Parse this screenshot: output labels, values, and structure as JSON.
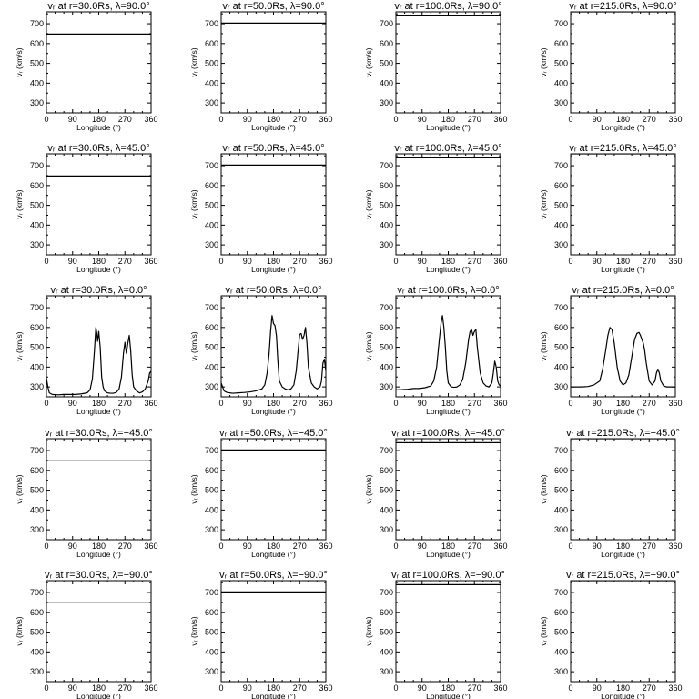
{
  "figure": {
    "background": "#ffffff",
    "ink": "#000000"
  },
  "chart_data": [
    {
      "type": "line",
      "title": "vᵣ at r=30.0Rs, λ=90.0°",
      "xlabel": "Longitude (°)",
      "ylabel": "vᵣ (km/s)",
      "xlim": [
        0,
        360
      ],
      "ylim": [
        250,
        760
      ],
      "xticks": [
        0,
        90,
        180,
        270,
        360
      ],
      "yticks": [
        300,
        400,
        500,
        600,
        700
      ],
      "x": [
        0,
        360
      ],
      "y": [
        648,
        648
      ]
    },
    {
      "type": "line",
      "title": "vᵣ at r=50.0Rs, λ=90.0°",
      "xlabel": "Longitude (°)",
      "ylabel": "vᵣ (km/s)",
      "xlim": [
        0,
        360
      ],
      "ylim": [
        250,
        760
      ],
      "xticks": [
        0,
        90,
        180,
        270,
        360
      ],
      "yticks": [
        300,
        400,
        500,
        600,
        700
      ],
      "x": [
        0,
        360
      ],
      "y": [
        703,
        703
      ]
    },
    {
      "type": "line",
      "title": "vᵣ at r=100.0Rs, λ=90.0°",
      "xlabel": "Longitude (°)",
      "ylabel": "vᵣ (km/s)",
      "xlim": [
        0,
        360
      ],
      "ylim": [
        250,
        760
      ],
      "xticks": [
        0,
        90,
        180,
        270,
        360
      ],
      "yticks": [
        300,
        400,
        500,
        600,
        700
      ],
      "x": [
        0,
        360
      ],
      "y": [
        740,
        740
      ]
    },
    {
      "type": "line",
      "title": "vᵣ at r=215.0Rs, λ=90.0°",
      "xlabel": "Longitude (°)",
      "ylabel": "vᵣ (km/s)",
      "xlim": [
        0,
        360
      ],
      "ylim": [
        250,
        760
      ],
      "xticks": [
        0,
        90,
        180,
        270,
        360
      ],
      "yticks": [
        300,
        400,
        500,
        600,
        700
      ],
      "x": [
        0,
        360
      ],
      "y": [
        760,
        760
      ]
    },
    {
      "type": "line",
      "title": "vᵣ at r=30.0Rs, λ=45.0°",
      "xlabel": "Longitude (°)",
      "ylabel": "vᵣ (km/s)",
      "xlim": [
        0,
        360
      ],
      "ylim": [
        250,
        760
      ],
      "xticks": [
        0,
        90,
        180,
        270,
        360
      ],
      "yticks": [
        300,
        400,
        500,
        600,
        700
      ],
      "x": [
        0,
        360
      ],
      "y": [
        648,
        648
      ]
    },
    {
      "type": "line",
      "title": "vᵣ at r=50.0Rs, λ=45.0°",
      "xlabel": "Longitude (°)",
      "ylabel": "vᵣ (km/s)",
      "xlim": [
        0,
        360
      ],
      "ylim": [
        250,
        760
      ],
      "xticks": [
        0,
        90,
        180,
        270,
        360
      ],
      "yticks": [
        300,
        400,
        500,
        600,
        700
      ],
      "x": [
        0,
        360
      ],
      "y": [
        703,
        703
      ]
    },
    {
      "type": "line",
      "title": "vᵣ at r=100.0Rs, λ=45.0°",
      "xlabel": "Longitude (°)",
      "ylabel": "vᵣ (km/s)",
      "xlim": [
        0,
        360
      ],
      "ylim": [
        250,
        760
      ],
      "xticks": [
        0,
        90,
        180,
        270,
        360
      ],
      "yticks": [
        300,
        400,
        500,
        600,
        700
      ],
      "x": [
        0,
        360
      ],
      "y": [
        740,
        740
      ]
    },
    {
      "type": "line",
      "title": "vᵣ at r=215.0Rs, λ=45.0°",
      "xlabel": "Longitude (°)",
      "ylabel": "vᵣ (km/s)",
      "xlim": [
        0,
        360
      ],
      "ylim": [
        250,
        760
      ],
      "xticks": [
        0,
        90,
        180,
        270,
        360
      ],
      "yticks": [
        300,
        400,
        500,
        600,
        700
      ],
      "x": [
        0,
        360
      ],
      "y": [
        760,
        760
      ]
    },
    {
      "type": "line",
      "title": "vᵣ at r=30.0Rs, λ=0.0°",
      "xlabel": "Longitude (°)",
      "ylabel": "vᵣ (km/s)",
      "xlim": [
        0,
        360
      ],
      "ylim": [
        250,
        760
      ],
      "xticks": [
        0,
        90,
        180,
        270,
        360
      ],
      "yticks": [
        300,
        400,
        500,
        600,
        700
      ],
      "x": [
        0,
        5,
        10,
        20,
        40,
        60,
        80,
        100,
        120,
        140,
        150,
        158,
        165,
        170,
        173,
        176,
        180,
        185,
        190,
        195,
        200,
        210,
        220,
        230,
        240,
        250,
        258,
        265,
        270,
        275,
        280,
        285,
        290,
        295,
        300,
        310,
        320,
        330,
        340,
        350,
        355,
        360
      ],
      "y": [
        345,
        300,
        270,
        262,
        260,
        262,
        262,
        262,
        265,
        270,
        285,
        340,
        480,
        600,
        575,
        530,
        580,
        500,
        350,
        300,
        280,
        270,
        268,
        268,
        272,
        290,
        350,
        470,
        525,
        470,
        520,
        560,
        480,
        360,
        300,
        280,
        270,
        275,
        290,
        330,
        370,
        380
      ]
    },
    {
      "type": "line",
      "title": "vᵣ at r=50.0Rs, λ=0.0°",
      "xlabel": "Longitude (°)",
      "ylabel": "vᵣ (km/s)",
      "xlim": [
        0,
        360
      ],
      "ylim": [
        250,
        760
      ],
      "xticks": [
        0,
        90,
        180,
        270,
        360
      ],
      "yticks": [
        300,
        400,
        500,
        600,
        700
      ],
      "x": [
        0,
        5,
        10,
        20,
        40,
        60,
        80,
        100,
        120,
        140,
        150,
        158,
        165,
        170,
        175,
        180,
        185,
        190,
        195,
        200,
        210,
        220,
        230,
        240,
        250,
        258,
        265,
        270,
        275,
        280,
        285,
        290,
        295,
        300,
        310,
        320,
        330,
        340,
        345,
        350,
        355,
        360
      ],
      "y": [
        320,
        300,
        280,
        272,
        268,
        270,
        272,
        275,
        280,
        290,
        310,
        370,
        470,
        580,
        660,
        620,
        610,
        560,
        430,
        330,
        300,
        290,
        285,
        290,
        310,
        380,
        490,
        565,
        570,
        540,
        560,
        600,
        520,
        400,
        320,
        300,
        290,
        300,
        330,
        420,
        440,
        380
      ]
    },
    {
      "type": "line",
      "title": "vᵣ at r=100.0Rs, λ=0.0°",
      "xlabel": "Longitude (°)",
      "ylabel": "vᵣ (km/s)",
      "xlim": [
        0,
        360
      ],
      "ylim": [
        250,
        760
      ],
      "xticks": [
        0,
        90,
        180,
        270,
        360
      ],
      "yticks": [
        300,
        400,
        500,
        600,
        700
      ],
      "x": [
        0,
        20,
        40,
        60,
        80,
        100,
        120,
        130,
        140,
        148,
        155,
        160,
        165,
        170,
        175,
        180,
        190,
        200,
        210,
        220,
        230,
        240,
        250,
        255,
        260,
        265,
        270,
        275,
        280,
        290,
        300,
        310,
        320,
        330,
        335,
        340,
        345,
        350,
        355,
        360
      ],
      "y": [
        285,
        286,
        288,
        292,
        292,
        296,
        305,
        330,
        400,
        520,
        620,
        660,
        600,
        500,
        380,
        320,
        300,
        298,
        300,
        310,
        340,
        420,
        540,
        580,
        590,
        560,
        580,
        590,
        500,
        370,
        320,
        305,
        300,
        320,
        370,
        430,
        400,
        330,
        310,
        305
      ]
    },
    {
      "type": "line",
      "title": "vᵣ at r=215.0Rs, λ=0.0°",
      "xlabel": "Longitude (°)",
      "ylabel": "vᵣ (km/s)",
      "xlim": [
        0,
        360
      ],
      "ylim": [
        250,
        760
      ],
      "xticks": [
        0,
        90,
        180,
        270,
        360
      ],
      "yticks": [
        300,
        400,
        500,
        600,
        700
      ],
      "x": [
        0,
        20,
        40,
        60,
        80,
        100,
        110,
        120,
        128,
        135,
        142,
        150,
        160,
        170,
        180,
        190,
        200,
        210,
        220,
        228,
        235,
        240,
        245,
        250,
        255,
        260,
        270,
        280,
        290,
        295,
        300,
        305,
        310,
        320,
        330,
        340,
        350,
        360
      ],
      "y": [
        300,
        300,
        300,
        302,
        310,
        330,
        390,
        480,
        560,
        600,
        590,
        520,
        400,
        330,
        310,
        320,
        360,
        450,
        540,
        570,
        575,
        560,
        540,
        520,
        480,
        420,
        330,
        310,
        330,
        370,
        390,
        370,
        330,
        305,
        300,
        300,
        300,
        300
      ]
    },
    {
      "type": "line",
      "title": "vᵣ at r=30.0Rs, λ=−45.0°",
      "xlabel": "Longitude (°)",
      "ylabel": "vᵣ (km/s)",
      "xlim": [
        0,
        360
      ],
      "ylim": [
        250,
        760
      ],
      "xticks": [
        0,
        90,
        180,
        270,
        360
      ],
      "yticks": [
        300,
        400,
        500,
        600,
        700
      ],
      "x": [
        0,
        360
      ],
      "y": [
        648,
        648
      ]
    },
    {
      "type": "line",
      "title": "vᵣ at r=50.0Rs, λ=−45.0°",
      "xlabel": "Longitude (°)",
      "ylabel": "vᵣ (km/s)",
      "xlim": [
        0,
        360
      ],
      "ylim": [
        250,
        760
      ],
      "xticks": [
        0,
        90,
        180,
        270,
        360
      ],
      "yticks": [
        300,
        400,
        500,
        600,
        700
      ],
      "x": [
        0,
        360
      ],
      "y": [
        703,
        703
      ]
    },
    {
      "type": "line",
      "title": "vᵣ at r=100.0Rs, λ=−45.0°",
      "xlabel": "Longitude (°)",
      "ylabel": "vᵣ (km/s)",
      "xlim": [
        0,
        360
      ],
      "ylim": [
        250,
        760
      ],
      "xticks": [
        0,
        90,
        180,
        270,
        360
      ],
      "yticks": [
        300,
        400,
        500,
        600,
        700
      ],
      "x": [
        0,
        360
      ],
      "y": [
        740,
        740
      ]
    },
    {
      "type": "line",
      "title": "vᵣ at r=215.0Rs, λ=−45.0°",
      "xlabel": "Longitude (°)",
      "ylabel": "vᵣ (km/s)",
      "xlim": [
        0,
        360
      ],
      "ylim": [
        250,
        760
      ],
      "xticks": [
        0,
        90,
        180,
        270,
        360
      ],
      "yticks": [
        300,
        400,
        500,
        600,
        700
      ],
      "x": [
        0,
        360
      ],
      "y": [
        760,
        760
      ]
    },
    {
      "type": "line",
      "title": "vᵣ at r=30.0Rs, λ=−90.0°",
      "xlabel": "Longitude (°)",
      "ylabel": "vᵣ (km/s)",
      "xlim": [
        0,
        360
      ],
      "ylim": [
        250,
        760
      ],
      "xticks": [
        0,
        90,
        180,
        270,
        360
      ],
      "yticks": [
        300,
        400,
        500,
        600,
        700
      ],
      "x": [
        0,
        360
      ],
      "y": [
        648,
        648
      ]
    },
    {
      "type": "line",
      "title": "vᵣ at r=50.0Rs, λ=−90.0°",
      "xlabel": "Longitude (°)",
      "ylabel": "vᵣ (km/s)",
      "xlim": [
        0,
        360
      ],
      "ylim": [
        250,
        760
      ],
      "xticks": [
        0,
        90,
        180,
        270,
        360
      ],
      "yticks": [
        300,
        400,
        500,
        600,
        700
      ],
      "x": [
        0,
        360
      ],
      "y": [
        703,
        703
      ]
    },
    {
      "type": "line",
      "title": "vᵣ at r=100.0Rs, λ=−90.0°",
      "xlabel": "Longitude (°)",
      "ylabel": "vᵣ (km/s)",
      "xlim": [
        0,
        360
      ],
      "ylim": [
        250,
        760
      ],
      "xticks": [
        0,
        90,
        180,
        270,
        360
      ],
      "yticks": [
        300,
        400,
        500,
        600,
        700
      ],
      "x": [
        0,
        360
      ],
      "y": [
        740,
        740
      ]
    },
    {
      "type": "line",
      "title": "vᵣ at r=215.0Rs, λ=−90.0°",
      "xlabel": "Longitude (°)",
      "ylabel": "vᵣ (km/s)",
      "xlim": [
        0,
        360
      ],
      "ylim": [
        250,
        760
      ],
      "xticks": [
        0,
        90,
        180,
        270,
        360
      ],
      "yticks": [
        300,
        400,
        500,
        600,
        700
      ],
      "x": [
        0,
        360
      ],
      "y": [
        760,
        760
      ]
    }
  ]
}
